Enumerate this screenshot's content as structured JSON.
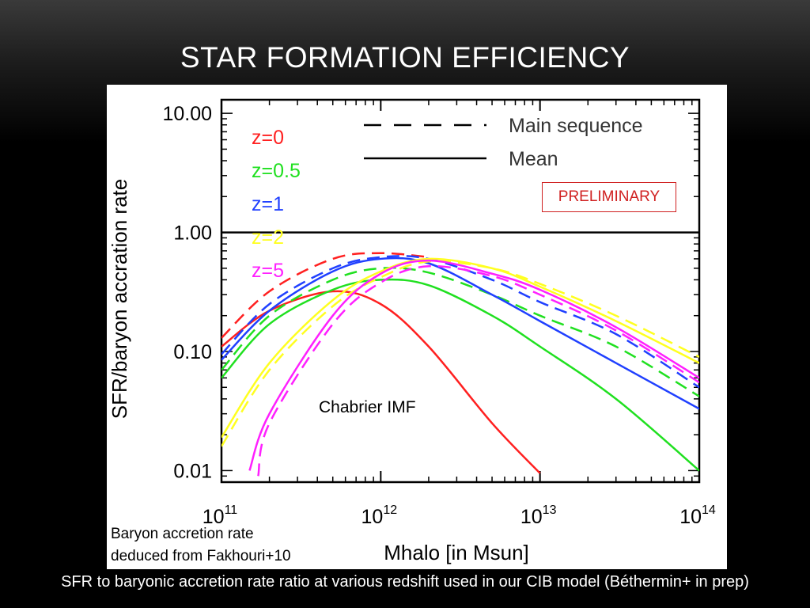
{
  "slide": {
    "title": "STAR FORMATION EFFICIENCY",
    "caption": "SFR to baryonic accretion rate ratio at various redshift used in our CIB model (Béthermin+ in prep)",
    "note_line1": "Baryon accretion rate",
    "note_line2": "deduced from Fakhouri+10",
    "preliminary": "PRELIMINARY",
    "imf": "Chabrier IMF"
  },
  "chart_data": {
    "type": "line",
    "title": "",
    "xlabel": "Mhalo [in Msun]",
    "ylabel": "SFR/baryon accration rate",
    "xscale": "log",
    "yscale": "log",
    "xlim": [
      100000000000.0,
      100000000000000.0
    ],
    "ylim": [
      0.008,
      13
    ],
    "x_ticks": [
      {
        "value": 100000000000.0,
        "base": "10",
        "exp": "11"
      },
      {
        "value": 1000000000000.0,
        "base": "10",
        "exp": "12"
      },
      {
        "value": 10000000000000.0,
        "base": "10",
        "exp": "13"
      },
      {
        "value": 100000000000000.0,
        "base": "10",
        "exp": "14"
      }
    ],
    "y_ticks": [
      {
        "value": 0.01,
        "label": "0.01"
      },
      {
        "value": 0.1,
        "label": "0.10"
      },
      {
        "value": 1,
        "label": "1.00"
      },
      {
        "value": 10,
        "label": "10.00"
      }
    ],
    "legend_style": [
      {
        "label": "Main sequence",
        "dash": "dashed"
      },
      {
        "label": "Mean",
        "dash": "solid"
      }
    ],
    "legend_redshift": [
      {
        "label": "z=0",
        "color": "#ff2020"
      },
      {
        "label": "z=0.5",
        "color": "#20e020"
      },
      {
        "label": "z=1",
        "color": "#2040ff"
      },
      {
        "label": "z=2",
        "color": "#ffff20"
      },
      {
        "label": "z=5",
        "color": "#ff20ff"
      }
    ],
    "reference_line": {
      "y": 1.0,
      "color": "#000000"
    },
    "series": [
      {
        "redshift": "z=0",
        "style": "solid",
        "color": "#ff2020",
        "x": [
          100000000000.0,
          200000000000.0,
          500000000000.0,
          1000000000000.0,
          2000000000000.0,
          5000000000000.0,
          10000000000000.0
        ],
        "y": [
          0.11,
          0.22,
          0.32,
          0.25,
          0.11,
          0.025,
          0.0095
        ]
      },
      {
        "redshift": "z=0",
        "style": "dashed",
        "color": "#ff2020",
        "x": [
          100000000000.0,
          200000000000.0,
          500000000000.0,
          1000000000000.0,
          2000000000000.0
        ],
        "y": [
          0.13,
          0.32,
          0.6,
          0.67,
          0.62
        ]
      },
      {
        "redshift": "z=0.5",
        "style": "solid",
        "color": "#20e020",
        "x": [
          100000000000.0,
          200000000000.0,
          500000000000.0,
          1000000000000.0,
          2000000000000.0,
          5000000000000.0,
          10000000000000.0,
          30000000000000.0,
          100000000000000.0
        ],
        "y": [
          0.06,
          0.17,
          0.33,
          0.4,
          0.36,
          0.2,
          0.11,
          0.04,
          0.01
        ]
      },
      {
        "redshift": "z=0.5",
        "style": "dashed",
        "color": "#20e020",
        "x": [
          100000000000.0,
          200000000000.0,
          500000000000.0,
          1000000000000.0,
          2000000000000.0,
          5000000000000.0,
          10000000000000.0,
          30000000000000.0,
          100000000000000.0
        ],
        "y": [
          0.07,
          0.2,
          0.4,
          0.5,
          0.46,
          0.3,
          0.2,
          0.11,
          0.042
        ]
      },
      {
        "redshift": "z=1",
        "style": "solid",
        "color": "#2040ff",
        "x": [
          100000000000.0,
          200000000000.0,
          500000000000.0,
          1000000000000.0,
          2000000000000.0,
          5000000000000.0,
          10000000000000.0,
          30000000000000.0,
          100000000000000.0
        ],
        "y": [
          0.085,
          0.22,
          0.47,
          0.6,
          0.55,
          0.3,
          0.18,
          0.08,
          0.033
        ]
      },
      {
        "redshift": "z=1",
        "style": "dashed",
        "color": "#2040ff",
        "x": [
          100000000000.0,
          200000000000.0,
          500000000000.0,
          1000000000000.0,
          2000000000000.0,
          5000000000000.0,
          10000000000000.0,
          30000000000000.0,
          100000000000000.0
        ],
        "y": [
          0.095,
          0.25,
          0.5,
          0.62,
          0.6,
          0.4,
          0.26,
          0.14,
          0.05
        ]
      },
      {
        "redshift": "z=2",
        "style": "solid",
        "color": "#ffff20",
        "x": [
          100000000000.0,
          200000000000.0,
          500000000000.0,
          1000000000000.0,
          2000000000000.0,
          5000000000000.0,
          10000000000000.0,
          30000000000000.0,
          100000000000000.0
        ],
        "y": [
          0.019,
          0.08,
          0.27,
          0.47,
          0.6,
          0.5,
          0.35,
          0.18,
          0.08
        ]
      },
      {
        "redshift": "z=2",
        "style": "dashed",
        "color": "#ffff20",
        "x": [
          100000000000.0,
          200000000000.0,
          500000000000.0,
          1000000000000.0,
          2000000000000.0,
          5000000000000.0,
          10000000000000.0,
          30000000000000.0,
          100000000000000.0
        ],
        "y": [
          0.016,
          0.07,
          0.24,
          0.42,
          0.57,
          0.5,
          0.37,
          0.2,
          0.09
        ]
      },
      {
        "redshift": "z=5",
        "style": "solid",
        "color": "#ff20ff",
        "x": [
          150000000000.0,
          200000000000.0,
          500000000000.0,
          1000000000000.0,
          2000000000000.0,
          5000000000000.0,
          10000000000000.0,
          30000000000000.0,
          100000000000000.0
        ],
        "y": [
          0.01,
          0.03,
          0.2,
          0.45,
          0.58,
          0.45,
          0.33,
          0.16,
          0.06
        ]
      },
      {
        "redshift": "z=5",
        "style": "dashed",
        "color": "#ff20ff",
        "x": [
          170000000000.0,
          200000000000.0,
          500000000000.0,
          1000000000000.0,
          2000000000000.0,
          5000000000000.0,
          10000000000000.0,
          30000000000000.0,
          100000000000000.0
        ],
        "y": [
          0.009,
          0.025,
          0.17,
          0.38,
          0.52,
          0.43,
          0.3,
          0.15,
          0.055
        ]
      }
    ]
  }
}
